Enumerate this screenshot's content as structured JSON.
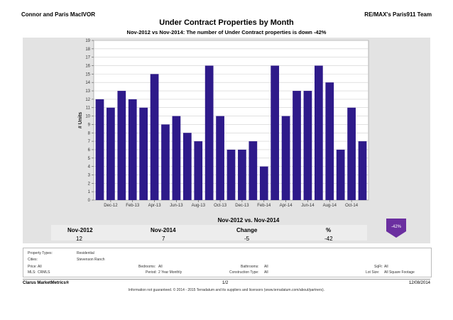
{
  "header": {
    "agent": "Connor and Paris MacIVOR",
    "team": "RE/MAX's Paris911 Team",
    "title": "Under Contract Properties by Month",
    "subtitle": "Nov-2012 vs Nov-2014: The number of Under Contract  properties is down -42%"
  },
  "chart_data": {
    "type": "bar",
    "ylabel": "# Units",
    "ylim": [
      0,
      19
    ],
    "yticks": [
      0,
      1,
      2,
      3,
      4,
      5,
      6,
      7,
      8,
      9,
      10,
      11,
      12,
      13,
      14,
      15,
      16,
      17,
      18,
      19
    ],
    "x_tick_labels": [
      "Dec-12",
      "Feb-13",
      "Apr-13",
      "Jun-13",
      "Aug-13",
      "Oct-13",
      "Dec-13",
      "Feb-14",
      "Apr-14",
      "Jun-14",
      "Aug-14",
      "Oct-14"
    ],
    "categories": [
      "Nov-12",
      "Dec-12",
      "Jan-13",
      "Feb-13",
      "Mar-13",
      "Apr-13",
      "May-13",
      "Jun-13",
      "Jul-13",
      "Aug-13",
      "Sep-13",
      "Oct-13",
      "Nov-13",
      "Dec-13",
      "Jan-14",
      "Feb-14",
      "Mar-14",
      "Apr-14",
      "May-14",
      "Jun-14",
      "Jul-14",
      "Aug-14",
      "Sep-14",
      "Oct-14",
      "Nov-14"
    ],
    "values": [
      12,
      11,
      13,
      12,
      11,
      15,
      9,
      10,
      8,
      7,
      16,
      10,
      6,
      6,
      7,
      4,
      16,
      10,
      13,
      13,
      16,
      14,
      6,
      11,
      7
    ],
    "bar_color": "#2e1a8a",
    "grid": true
  },
  "comparison": {
    "title": "Nov-2012 vs. Nov-2014",
    "headers": [
      "Nov-2012",
      "Nov-2014",
      "Change",
      "%"
    ],
    "values": [
      "12",
      "7",
      "-5",
      "-42"
    ],
    "badge": "-42%",
    "badge_color": "#6b2fa0"
  },
  "filters": {
    "property_types_label": "Property Types:",
    "property_types_value": "Residential",
    "cities_label": "Cities:",
    "cities_value": "Stevenson Ranch",
    "price_label": "Price:",
    "price_value": "All",
    "mls_label": "MLS:",
    "mls_value": "CRMLS",
    "bedrooms_label": "Bedrooms:",
    "bedrooms_value": "All",
    "period_label": "Period:",
    "period_value": "2 Year Monthly",
    "bathrooms_label": "Bathrooms:",
    "bathrooms_value": "All",
    "construction_label": "Construction Type:",
    "construction_value": "All",
    "sqft_label": "SqFt:",
    "sqft_value": "All",
    "lotsize_label": "Lot Size:",
    "lotsize_value": "All Square Footage"
  },
  "footer": {
    "brand": "Clarus MarketMetrics®",
    "page": "1/2",
    "date": "12/08/2014",
    "disclaimer": "Information not guaranteed. © 2014 - 2015 Terradatum and its suppliers and licensors (www.terradatum.com/about/partners)."
  }
}
